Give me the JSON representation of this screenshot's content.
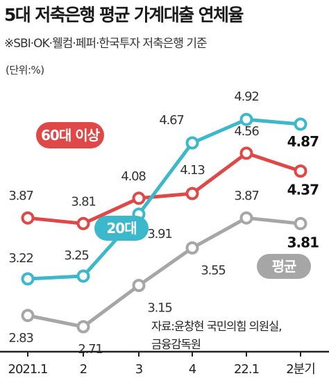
{
  "title": "5대 저축은행 평균 가계대출 연체율",
  "subtitle": "※SBI·OK·웰컴·페퍼·한국투자 저축은행 기준",
  "unit": "(단위:%)",
  "source_lines": [
    "자료:윤창현 국민의힘 의원실,",
    "금융감독원"
  ],
  "colors": {
    "senior": "#e04848",
    "twenties": "#3bb8cc",
    "average": "#a6a6a6"
  },
  "chart_data": {
    "type": "line",
    "categories": [
      "2021.1",
      "2",
      "3",
      "4",
      "22.1",
      "2분기"
    ],
    "series": [
      {
        "name": "60대 이상",
        "values": [
          3.87,
          3.81,
          4.08,
          4.13,
          4.56,
          4.37
        ],
        "labels": [
          "3.87",
          "3.81",
          "4.08",
          "4.13",
          "4.56",
          "4.37"
        ]
      },
      {
        "name": "20대",
        "values": [
          3.22,
          3.25,
          3.91,
          4.67,
          4.92,
          4.87
        ],
        "labels": [
          "3.22",
          "3.25",
          "3.91",
          "4.67",
          "4.92",
          "4.87"
        ]
      },
      {
        "name": "평균",
        "values": [
          2.83,
          2.71,
          3.15,
          3.55,
          3.87,
          3.81
        ],
        "labels": [
          "2.83",
          "2.71",
          "3.15",
          "3.55",
          "3.87",
          "3.81"
        ]
      }
    ]
  }
}
